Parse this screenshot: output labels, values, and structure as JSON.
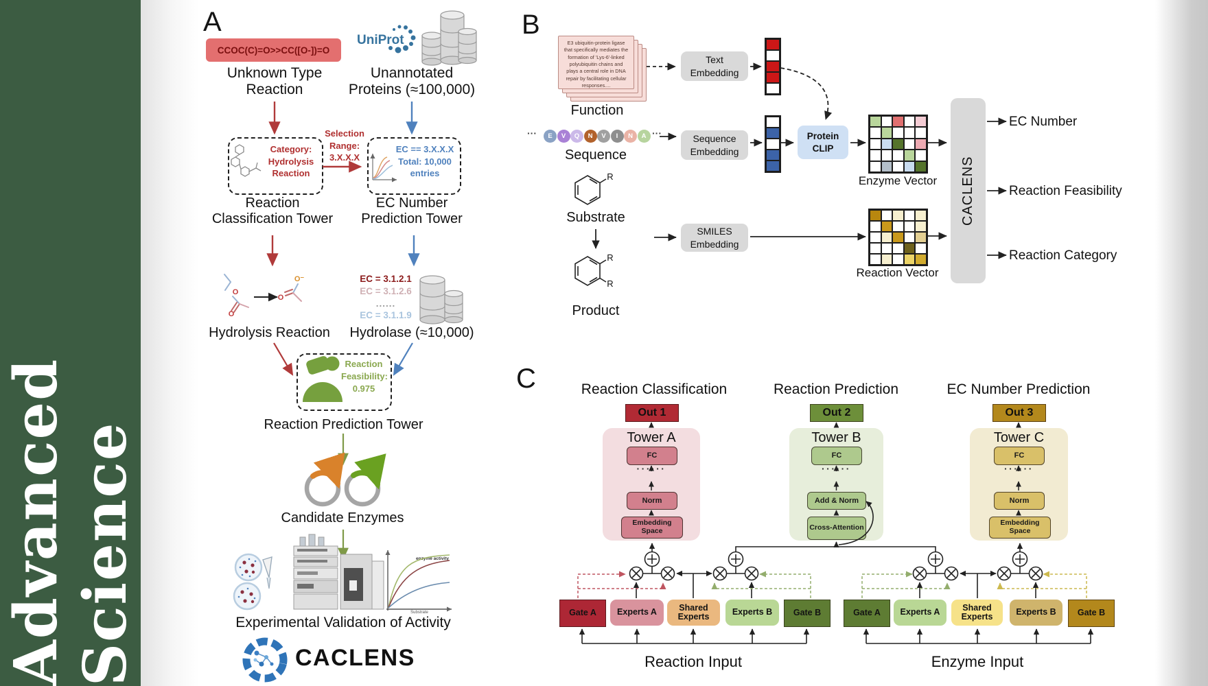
{
  "sidebar": {
    "title": "Advanced Science",
    "bg_color": "#3c5c42"
  },
  "panelA": {
    "label": "A",
    "smiles_box": "CCOC(C)=O>>CC([O-])=O",
    "unknown_label": [
      "Unknown Type",
      "Reaction"
    ],
    "uniprot_label": "UniProt",
    "unannotated_label": [
      "Unannotated",
      "Proteins (≈100,000)"
    ],
    "selection_label": [
      "Selection",
      "Range:",
      "3.X.X.X"
    ],
    "category_box": [
      "Category:",
      "Hydrolysis",
      "Reaction"
    ],
    "ec_box": [
      "EC == 3.X.X.X",
      "Total: 10,000",
      "entries"
    ],
    "classification_tower_label": [
      "Reaction",
      "Classification Tower"
    ],
    "ec_tower_label": [
      "EC Number",
      "Prediction Tower"
    ],
    "ec_list": [
      "EC = 3.1.2.1",
      "EC = 3.1.2.6",
      "......",
      "EC = 3.1.1.9"
    ],
    "hydrolysis_label": "Hydrolysis Reaction",
    "hydrolase_label": "Hydrolase (≈10,000)",
    "enzyme_icon_label": "Enzyme",
    "feasibility_box": [
      "Reaction",
      "Feasibility:",
      "0.975"
    ],
    "prediction_tower_label": "Reaction Prediction Tower",
    "candidate_label": "Candidate Enzymes",
    "activity_plot": {
      "annotation": "enzyme activity",
      "ylabel": "Rate of reaction",
      "xlabel": "Substrate"
    },
    "validation_label": "Experimental Validation of Activity",
    "logo_text": "CACLENS",
    "atoms": {
      "o": "O",
      "o_minus": "O⁻"
    }
  },
  "panelB": {
    "label": "B",
    "function_card": [
      "E3 ubiquitin-protein ligase",
      "that specifically mediates the",
      "formation of 'Lys-6'-linked",
      "polyubiquitin chains and",
      "plays a central role in DNA",
      "repair by facilitating cellular",
      "responses...."
    ],
    "function_label": "Function",
    "ellipsis": "···",
    "residues": [
      {
        "letter": "E",
        "color": "#8aa2c4"
      },
      {
        "letter": "V",
        "color": "#a981d6"
      },
      {
        "letter": "Q",
        "color": "#cbb9e9"
      },
      {
        "letter": "N",
        "color": "#b2622c"
      },
      {
        "letter": "V",
        "color": "#a0a0a0"
      },
      {
        "letter": "I",
        "color": "#8e8e8e"
      },
      {
        "letter": "N",
        "color": "#eab3a6"
      },
      {
        "letter": "A",
        "color": "#b7d49e"
      }
    ],
    "sequence_label": "Sequence",
    "substrate_label": "Substrate",
    "product_label": "Product",
    "r_label": "R",
    "text_embedding": [
      "Text",
      "Embedding"
    ],
    "sequence_embedding": [
      "Sequence",
      "Embedding"
    ],
    "smiles_embedding": [
      "SMILES",
      "Embedding"
    ],
    "protein_clip": [
      "Protein",
      "CLIP"
    ],
    "text_vector": [
      "#cc1717",
      "#ffffff",
      "#cc1717",
      "#cc1717",
      "#ffffff"
    ],
    "sequence_vector": [
      "#ffffff",
      "#3c63a8",
      "#ffffff",
      "#3c63a8",
      "#3c63a8"
    ],
    "enzyme_vector_label": "Enzyme Vector",
    "enzyme_vector": [
      "#b9d69c",
      "#ffffff",
      "#e07070",
      "#ffffff",
      "#f4ccd4",
      "#ffffff",
      "#b9d69c",
      "#ffffff",
      "#ffffff",
      "#ffffff",
      "#ffffff",
      "#c9dcf0",
      "#55742c",
      "#ffffff",
      "#edaab2",
      "#ffffff",
      "#ffffff",
      "#ffffff",
      "#b9d69c",
      "#ffffff",
      "#ffffff",
      "#b4bfc9",
      "#ffffff",
      "#c9dcf0",
      "#55742c"
    ],
    "reaction_vector_label": "Reaction Vector",
    "reaction_vector": [
      "#b8870f",
      "#ffffff",
      "#f6efcf",
      "#ffffff",
      "#f6efcf",
      "#ffffff",
      "#c9991c",
      "#ffffff",
      "#ffffff",
      "#f6efcf",
      "#ffffff",
      "#f6efcf",
      "#c9991c",
      "#ffffff",
      "#e3cf92",
      "#ffffff",
      "#ffffff",
      "#ffffff",
      "#6e611c",
      "#ffffff",
      "#ffffff",
      "#f6efcf",
      "#ffffff",
      "#ecd468",
      "#d1ab2e"
    ],
    "caclens_bar": "CACLENS",
    "outputs": [
      "EC Number",
      "Reaction Feasibility",
      "Reaction Category"
    ]
  },
  "panelC": {
    "label": "C",
    "headers": [
      "Reaction Classification",
      "Reaction Prediction",
      "EC Number Prediction"
    ],
    "outs": [
      {
        "label": "Out 1",
        "color": "#b12a34"
      },
      {
        "label": "Out 2",
        "color": "#6d8f3a"
      },
      {
        "label": "Out 3",
        "color": "#b3881c"
      }
    ],
    "towers": [
      {
        "name": "Tower A",
        "fc": "FC",
        "dots": "······",
        "mid": "Norm",
        "bottom": "Embedding Space",
        "bg": "#f3dde0",
        "box": "#d2808d"
      },
      {
        "name": "Tower B",
        "fc": "FC",
        "dots": "······",
        "mid": "Add & Norm",
        "bottom": "Cross-Attention",
        "bg": "#e7eedb",
        "box": "#aec98d"
      },
      {
        "name": "Tower C",
        "fc": "FC",
        "dots": "······",
        "mid": "Norm",
        "bottom": "Embedding Space",
        "bg": "#f2ebd2",
        "box": "#d9c069"
      }
    ],
    "moe_left": {
      "input_label": "Reaction Input",
      "boxes": [
        {
          "label": "Gate A",
          "color": "#ad2735"
        },
        {
          "label": "Experts A",
          "color": "#d9939d"
        },
        {
          "label": "Shared Experts",
          "color": "#eab87f"
        },
        {
          "label": "Experts B",
          "color": "#b9d795"
        },
        {
          "label": "Gate B",
          "color": "#5e7c33"
        }
      ]
    },
    "moe_right": {
      "input_label": "Enzyme Input",
      "boxes": [
        {
          "label": "Gate A",
          "color": "#5e7c33"
        },
        {
          "label": "Experts A",
          "color": "#b9d795"
        },
        {
          "label": "Shared Experts",
          "color": "#f6e289"
        },
        {
          "label": "Experts B",
          "color": "#cfb46c"
        },
        {
          "label": "Gate B",
          "color": "#b3881c"
        }
      ]
    }
  }
}
